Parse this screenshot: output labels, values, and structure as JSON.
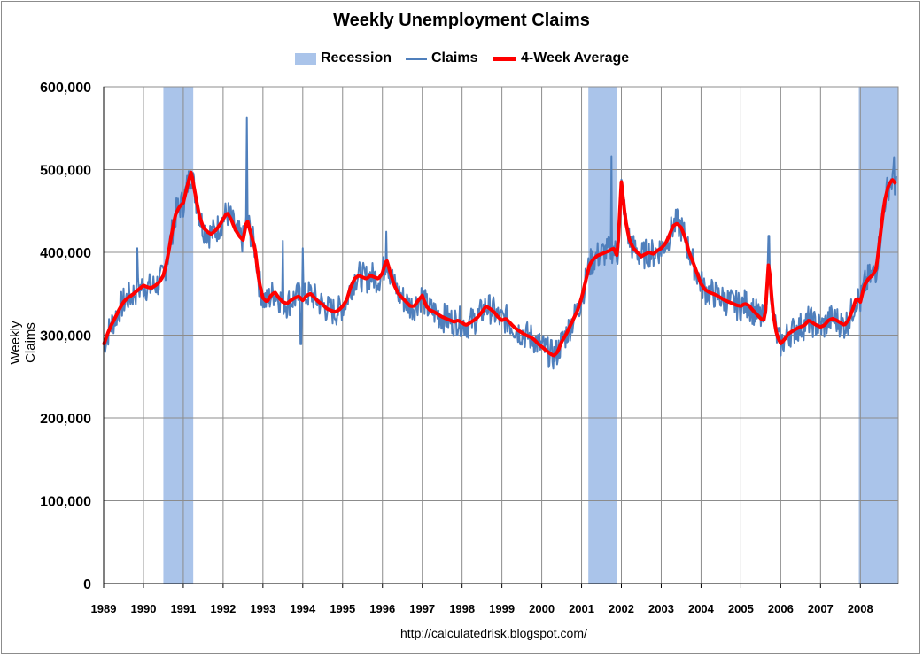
{
  "chart_data": {
    "type": "line",
    "title": "Weekly Unemployment Claims",
    "xlabel": "",
    "ylabel": "Weekly Claims",
    "source": "http://calculatedrisk.blogspot.com/",
    "xlim": [
      1989,
      2008.95
    ],
    "ylim": [
      0,
      600000
    ],
    "y_ticks": [
      "0",
      "100,000",
      "200,000",
      "300,000",
      "400,000",
      "500,000",
      "600,000"
    ],
    "y_tick_values": [
      0,
      100000,
      200000,
      300000,
      400000,
      500000,
      600000
    ],
    "x_ticks": [
      "1989",
      "1990",
      "1991",
      "1992",
      "1993",
      "1994",
      "1995",
      "1996",
      "1997",
      "1998",
      "1999",
      "2000",
      "2001",
      "2002",
      "2003",
      "2004",
      "2005",
      "2006",
      "2007",
      "2008"
    ],
    "x_tick_values": [
      1989,
      1990,
      1991,
      1992,
      1993,
      1994,
      1995,
      1996,
      1997,
      1998,
      1999,
      2000,
      2001,
      2002,
      2003,
      2004,
      2005,
      2006,
      2007,
      2008
    ],
    "grid": true,
    "legend_position": "top-center",
    "legend": [
      "Recession",
      "Claims",
      "4-Week Average"
    ],
    "colors": {
      "recession": "#aac4ea",
      "claims": "#4f7fbc",
      "average": "#ff0000",
      "grid": "#8c8c8c",
      "border": "#8c8c8c"
    },
    "recessions": [
      {
        "start": 1990.5,
        "end": 1991.25
      },
      {
        "start": 2001.17,
        "end": 2001.88
      },
      {
        "start": 2007.96,
        "end": 2008.95
      }
    ],
    "series": [
      {
        "name": "4-Week Average",
        "x": [
          1989.0,
          1989.1,
          1989.2,
          1989.3,
          1989.4,
          1989.5,
          1989.6,
          1989.7,
          1989.8,
          1989.9,
          1990.0,
          1990.1,
          1990.2,
          1990.3,
          1990.4,
          1990.5,
          1990.6,
          1990.7,
          1990.8,
          1990.9,
          1991.0,
          1991.1,
          1991.2,
          1991.3,
          1991.4,
          1991.5,
          1991.6,
          1991.7,
          1991.8,
          1991.9,
          1992.0,
          1992.1,
          1992.2,
          1992.3,
          1992.4,
          1992.5,
          1992.6,
          1992.7,
          1992.8,
          1992.9,
          1993.0,
          1993.1,
          1993.2,
          1993.3,
          1993.4,
          1993.5,
          1993.6,
          1993.7,
          1993.8,
          1993.9,
          1994.0,
          1994.1,
          1994.2,
          1994.3,
          1994.4,
          1994.5,
          1994.6,
          1994.7,
          1994.8,
          1994.9,
          1995.0,
          1995.1,
          1995.2,
          1995.3,
          1995.4,
          1995.5,
          1995.6,
          1995.7,
          1995.8,
          1995.9,
          1996.0,
          1996.1,
          1996.2,
          1996.3,
          1996.4,
          1996.5,
          1996.6,
          1996.7,
          1996.8,
          1996.9,
          1997.0,
          1997.1,
          1997.2,
          1997.3,
          1997.4,
          1997.5,
          1997.6,
          1997.7,
          1997.8,
          1997.9,
          1998.0,
          1998.1,
          1998.2,
          1998.3,
          1998.4,
          1998.5,
          1998.6,
          1998.7,
          1998.8,
          1998.9,
          1999.0,
          1999.1,
          1999.2,
          1999.3,
          1999.4,
          1999.5,
          1999.6,
          1999.7,
          1999.8,
          1999.9,
          2000.0,
          2000.1,
          2000.2,
          2000.3,
          2000.4,
          2000.5,
          2000.6,
          2000.7,
          2000.8,
          2000.9,
          2001.0,
          2001.1,
          2001.2,
          2001.3,
          2001.4,
          2001.5,
          2001.6,
          2001.7,
          2001.8,
          2001.9,
          2002.0,
          2002.1,
          2002.2,
          2002.3,
          2002.4,
          2002.5,
          2002.6,
          2002.7,
          2002.8,
          2002.9,
          2003.0,
          2003.1,
          2003.2,
          2003.3,
          2003.4,
          2003.5,
          2003.6,
          2003.7,
          2003.8,
          2003.9,
          2004.0,
          2004.1,
          2004.2,
          2004.3,
          2004.4,
          2004.5,
          2004.6,
          2004.7,
          2004.8,
          2004.9,
          2005.0,
          2005.1,
          2005.2,
          2005.3,
          2005.4,
          2005.5,
          2005.6,
          2005.7,
          2005.8,
          2005.9,
          2006.0,
          2006.1,
          2006.2,
          2006.3,
          2006.4,
          2006.5,
          2006.6,
          2006.7,
          2006.8,
          2006.9,
          2007.0,
          2007.1,
          2007.2,
          2007.3,
          2007.4,
          2007.5,
          2007.6,
          2007.7,
          2007.8,
          2007.9,
          2008.0,
          2008.1,
          2008.2,
          2008.3,
          2008.4,
          2008.5,
          2008.6,
          2008.7,
          2008.8,
          2008.9
        ],
        "y": [
          288000,
          302000,
          313000,
          322000,
          332000,
          340000,
          345000,
          348000,
          352000,
          356000,
          360000,
          358000,
          357000,
          360000,
          364000,
          372000,
          392000,
          420000,
          445000,
          455000,
          460000,
          480000,
          498000,
          470000,
          445000,
          430000,
          425000,
          422000,
          426000,
          432000,
          440000,
          448000,
          440000,
          428000,
          420000,
          415000,
          440000,
          422000,
          405000,
          365000,
          345000,
          340000,
          348000,
          352000,
          345000,
          340000,
          338000,
          342000,
          345000,
          347000,
          342000,
          348000,
          350000,
          345000,
          340000,
          337000,
          332000,
          330000,
          328000,
          330000,
          335000,
          342000,
          358000,
          368000,
          372000,
          370000,
          368000,
          372000,
          370000,
          368000,
          375000,
          392000,
          375000,
          360000,
          350000,
          345000,
          340000,
          335000,
          335000,
          342000,
          348000,
          335000,
          330000,
          328000,
          325000,
          322000,
          320000,
          318000,
          316000,
          318000,
          315000,
          312000,
          315000,
          318000,
          322000,
          328000,
          335000,
          332000,
          328000,
          322000,
          318000,
          320000,
          315000,
          310000,
          306000,
          303000,
          300000,
          298000,
          295000,
          290000,
          286000,
          282000,
          278000,
          275000,
          280000,
          292000,
          300000,
          310000,
          320000,
          330000,
          345000,
          365000,
          385000,
          392000,
          396000,
          398000,
          400000,
          402000,
          405000,
          395000,
          485000,
          440000,
          415000,
          405000,
          400000,
          395000,
          398000,
          400000,
          398000,
          402000,
          405000,
          410000,
          420000,
          432000,
          435000,
          430000,
          418000,
          400000,
          388000,
          375000,
          362000,
          355000,
          352000,
          350000,
          348000,
          345000,
          342000,
          340000,
          338000,
          336000,
          335000,
          338000,
          336000,
          330000,
          325000,
          320000,
          318000,
          390000,
          330000,
          300000,
          290000,
          295000,
          302000,
          305000,
          308000,
          310000,
          312000,
          318000,
          315000,
          312000,
          310000,
          312000,
          318000,
          320000,
          318000,
          315000,
          312000,
          318000,
          330000,
          345000,
          340000,
          360000,
          368000,
          372000,
          380000,
          420000,
          460000,
          480000,
          488000,
          482000
        ]
      }
    ],
    "claims_note": "Claims series is drawn as a noisy weekly line around the 4-Week Average"
  }
}
